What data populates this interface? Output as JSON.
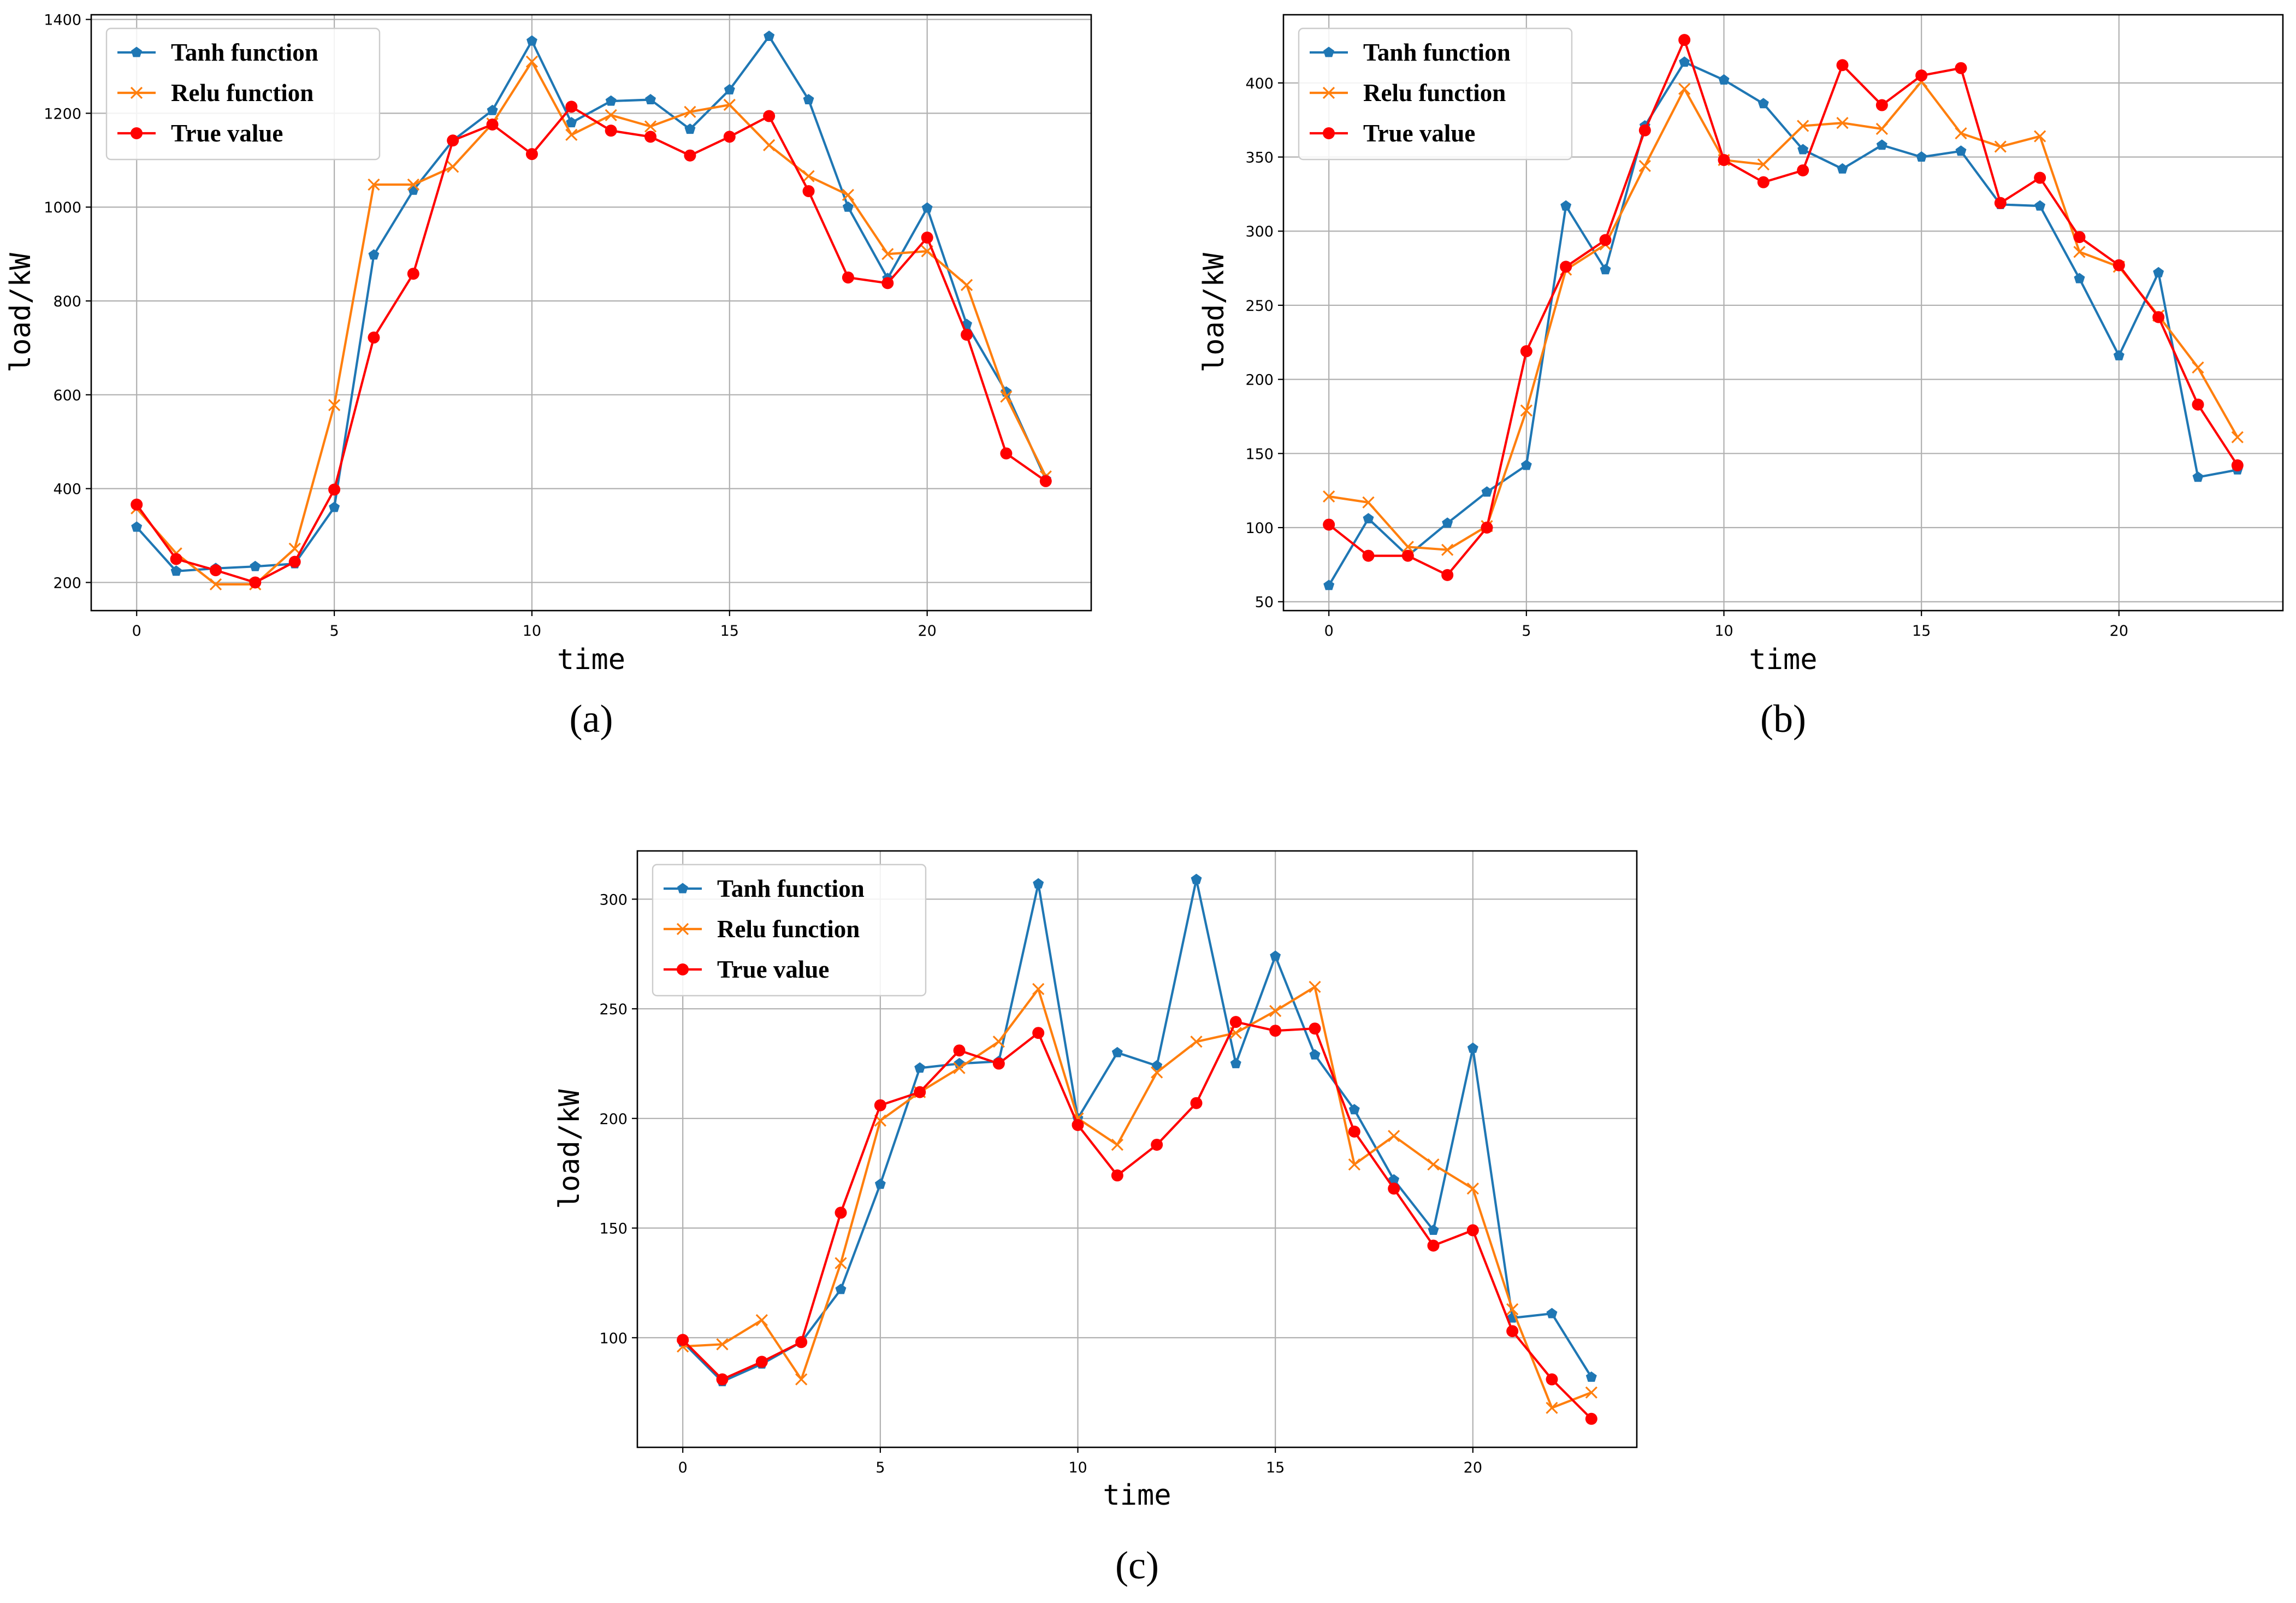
{
  "colors": {
    "tanh": "#1f77b4",
    "relu": "#ff7f0e",
    "true": "#ff0000"
  },
  "chart_data": [
    {
      "type": "line",
      "panel_label": "(a)",
      "xlabel": "time",
      "ylabel": "load/kW",
      "x": [
        0,
        1,
        2,
        3,
        4,
        5,
        6,
        7,
        8,
        9,
        10,
        11,
        12,
        13,
        14,
        15,
        16,
        17,
        18,
        19,
        20,
        21,
        22,
        23
      ],
      "xlim": [
        -1.15,
        24.15
      ],
      "ylim": [
        140,
        1410
      ],
      "xticks": [
        0,
        5,
        10,
        15,
        20
      ],
      "yticks": [
        200,
        400,
        600,
        800,
        1000,
        1200,
        1400
      ],
      "legend_position": "top-left",
      "grid": true,
      "series": [
        {
          "name": "Tanh function",
          "key": "tanh",
          "marker": "pentagon",
          "values": [
            318,
            224,
            230,
            234,
            240,
            360,
            898,
            1036,
            1142,
            1206,
            1354,
            1180,
            1226,
            1229,
            1166,
            1250,
            1364,
            1229,
            1000,
            848,
            998,
            750,
            606,
            420
          ]
        },
        {
          "name": "Relu function",
          "key": "relu",
          "marker": "x",
          "values": [
            358,
            262,
            196,
            196,
            272,
            578,
            1048,
            1048,
            1086,
            1178,
            1310,
            1154,
            1196,
            1172,
            1203,
            1218,
            1132,
            1066,
            1026,
            900,
            906,
            834,
            596,
            426
          ]
        },
        {
          "name": "True value",
          "key": "true",
          "marker": "circle",
          "values": [
            366,
            250,
            226,
            200,
            244,
            398,
            722,
            858,
            1142,
            1176,
            1113,
            1214,
            1163,
            1150,
            1110,
            1150,
            1194,
            1034,
            850,
            838,
            935,
            728,
            475,
            416
          ]
        }
      ]
    },
    {
      "type": "line",
      "panel_label": "(b)",
      "xlabel": "time",
      "ylabel": "load/kW",
      "x": [
        0,
        1,
        2,
        3,
        4,
        5,
        6,
        7,
        8,
        9,
        10,
        11,
        12,
        13,
        14,
        15,
        16,
        17,
        18,
        19,
        20,
        21,
        22,
        23
      ],
      "xlim": [
        -1.15,
        24.15
      ],
      "ylim": [
        44,
        446
      ],
      "xticks": [
        0,
        5,
        10,
        15,
        20
      ],
      "yticks": [
        50,
        100,
        150,
        200,
        250,
        300,
        350,
        400
      ],
      "legend_position": "top-left",
      "grid": true,
      "series": [
        {
          "name": "Tanh function",
          "key": "tanh",
          "marker": "pentagon",
          "values": [
            61,
            106,
            81,
            103,
            124,
            142,
            317,
            274,
            371,
            414,
            402,
            386,
            355,
            342,
            358,
            350,
            354,
            318,
            317,
            268,
            216,
            272,
            134,
            139
          ]
        },
        {
          "name": "Relu function",
          "key": "relu",
          "marker": "x",
          "values": [
            121,
            117,
            87,
            85,
            101,
            179,
            274,
            291,
            344,
            396,
            348,
            345,
            371,
            373,
            369,
            401,
            366,
            357,
            364,
            286,
            276,
            243,
            208,
            161
          ]
        },
        {
          "name": "True value",
          "key": "true",
          "marker": "circle",
          "values": [
            102,
            81,
            81,
            68,
            100,
            219,
            276,
            294,
            368,
            429,
            348,
            333,
            341,
            412,
            385,
            405,
            410,
            319,
            336,
            296,
            277,
            242,
            183,
            142
          ]
        }
      ]
    },
    {
      "type": "line",
      "panel_label": "(c)",
      "xlabel": "time",
      "ylabel": "load/kW",
      "x": [
        0,
        1,
        2,
        3,
        4,
        5,
        6,
        7,
        8,
        9,
        10,
        11,
        12,
        13,
        14,
        15,
        16,
        17,
        18,
        19,
        20,
        21,
        22,
        23
      ],
      "xlim": [
        -1.15,
        24.15
      ],
      "ylim": [
        50,
        322
      ],
      "xticks": [
        0,
        5,
        10,
        15,
        20
      ],
      "yticks": [
        100,
        150,
        200,
        250,
        300
      ],
      "legend_position": "top-left",
      "grid": true,
      "series": [
        {
          "name": "Tanh function",
          "key": "tanh",
          "marker": "pentagon",
          "values": [
            98,
            80,
            88,
            98,
            122,
            170,
            223,
            225,
            226,
            307,
            200,
            230,
            224,
            309,
            225,
            274,
            229,
            204,
            172,
            149,
            232,
            109,
            111,
            82
          ]
        },
        {
          "name": "Relu function",
          "key": "relu",
          "marker": "x",
          "values": [
            96,
            97,
            108,
            81,
            134,
            199,
            212,
            223,
            235,
            259,
            200,
            188,
            221,
            235,
            239,
            249,
            260,
            179,
            192,
            179,
            168,
            113,
            68,
            75
          ]
        },
        {
          "name": "True value",
          "key": "true",
          "marker": "circle",
          "values": [
            99,
            81,
            89,
            98,
            157,
            206,
            212,
            231,
            225,
            239,
            197,
            174,
            188,
            207,
            244,
            240,
            241,
            194,
            168,
            142,
            149,
            103,
            81,
            63
          ]
        }
      ]
    }
  ]
}
